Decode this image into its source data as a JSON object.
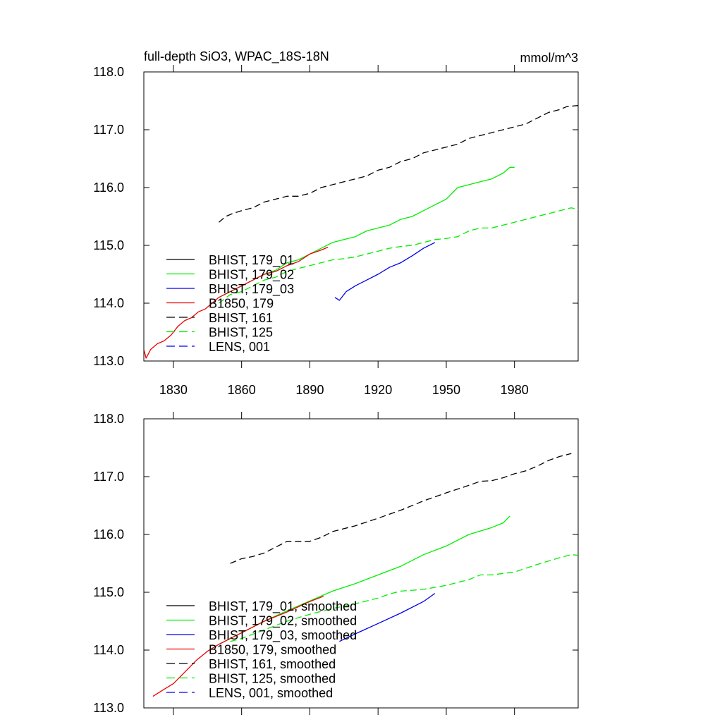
{
  "chart_data": [
    {
      "type": "line",
      "title": "full-depth SiO3, WPAC_18S-18N",
      "units": "mmol/m^3",
      "xlim": [
        1817,
        2008
      ],
      "ylim": [
        113.0,
        118.0
      ],
      "xticks": [
        1830,
        1860,
        1890,
        1920,
        1950,
        1980
      ],
      "xtick_labels": [
        "1830",
        "1860",
        "1890",
        "1920",
        "1950",
        "1980"
      ],
      "yticks": [
        113.0,
        114.0,
        115.0,
        116.0,
        117.0,
        118.0
      ],
      "ytick_labels": [
        "113.0",
        "114.0",
        "115.0",
        "116.0",
        "117.0",
        "118.0"
      ],
      "legend_position": "lower-left",
      "series": [
        {
          "name": "BHIST, 179_01",
          "color": "#000000",
          "dash": "solid",
          "points": []
        },
        {
          "name": "BHIST, 179_02",
          "color": "#00ee00",
          "dash": "solid",
          "points": [
            [
              1850,
              114.1
            ],
            [
              1855,
              114.2
            ],
            [
              1860,
              114.3
            ],
            [
              1865,
              114.4
            ],
            [
              1870,
              114.5
            ],
            [
              1875,
              114.57
            ],
            [
              1880,
              114.7
            ],
            [
              1885,
              114.75
            ],
            [
              1890,
              114.85
            ],
            [
              1895,
              114.95
            ],
            [
              1900,
              115.05
            ],
            [
              1905,
              115.1
            ],
            [
              1910,
              115.15
            ],
            [
              1915,
              115.25
            ],
            [
              1920,
              115.3
            ],
            [
              1925,
              115.35
            ],
            [
              1930,
              115.45
            ],
            [
              1935,
              115.5
            ],
            [
              1940,
              115.6
            ],
            [
              1945,
              115.7
            ],
            [
              1950,
              115.8
            ],
            [
              1955,
              116.0
            ],
            [
              1960,
              116.05
            ],
            [
              1965,
              116.1
            ],
            [
              1970,
              116.15
            ],
            [
              1975,
              116.25
            ],
            [
              1978,
              116.35
            ],
            [
              1980,
              116.35
            ]
          ]
        },
        {
          "name": "BHIST, 179_03",
          "color": "#0000ee",
          "dash": "solid",
          "points": [
            [
              1901,
              114.1
            ],
            [
              1903,
              114.05
            ],
            [
              1906,
              114.2
            ],
            [
              1910,
              114.3
            ],
            [
              1915,
              114.4
            ],
            [
              1920,
              114.5
            ],
            [
              1925,
              114.62
            ],
            [
              1930,
              114.7
            ],
            [
              1935,
              114.82
            ],
            [
              1940,
              114.95
            ],
            [
              1945,
              115.05
            ]
          ]
        },
        {
          "name": "B1850, 179",
          "color": "#ee0000",
          "dash": "solid",
          "points": [
            [
              1817,
              113.2
            ],
            [
              1818,
              113.05
            ],
            [
              1820,
              113.2
            ],
            [
              1823,
              113.3
            ],
            [
              1826,
              113.35
            ],
            [
              1829,
              113.45
            ],
            [
              1832,
              113.6
            ],
            [
              1835,
              113.7
            ],
            [
              1838,
              113.75
            ],
            [
              1841,
              113.85
            ],
            [
              1844,
              113.9
            ],
            [
              1847,
              114.0
            ],
            [
              1850,
              114.1
            ],
            [
              1855,
              114.2
            ],
            [
              1860,
              114.3
            ],
            [
              1865,
              114.4
            ],
            [
              1870,
              114.5
            ],
            [
              1875,
              114.55
            ],
            [
              1880,
              114.65
            ],
            [
              1885,
              114.72
            ],
            [
              1890,
              114.85
            ],
            [
              1895,
              114.92
            ],
            [
              1898,
              114.97
            ]
          ]
        },
        {
          "name": "BHIST, 161",
          "color": "#000000",
          "dash": "dashed",
          "points": [
            [
              1850,
              115.4
            ],
            [
              1853,
              115.5
            ],
            [
              1856,
              115.55
            ],
            [
              1860,
              115.6
            ],
            [
              1865,
              115.65
            ],
            [
              1870,
              115.75
            ],
            [
              1875,
              115.8
            ],
            [
              1880,
              115.85
            ],
            [
              1885,
              115.85
            ],
            [
              1890,
              115.9
            ],
            [
              1895,
              116.0
            ],
            [
              1900,
              116.05
            ],
            [
              1905,
              116.1
            ],
            [
              1910,
              116.15
            ],
            [
              1915,
              116.2
            ],
            [
              1920,
              116.3
            ],
            [
              1925,
              116.35
            ],
            [
              1930,
              116.45
            ],
            [
              1935,
              116.5
            ],
            [
              1940,
              116.6
            ],
            [
              1945,
              116.65
            ],
            [
              1950,
              116.7
            ],
            [
              1955,
              116.75
            ],
            [
              1960,
              116.85
            ],
            [
              1965,
              116.9
            ],
            [
              1970,
              116.95
            ],
            [
              1975,
              117.0
            ],
            [
              1980,
              117.05
            ],
            [
              1985,
              117.1
            ],
            [
              1990,
              117.2
            ],
            [
              1995,
              117.3
            ],
            [
              2000,
              117.35
            ],
            [
              2003,
              117.4
            ],
            [
              2008,
              117.42
            ]
          ]
        },
        {
          "name": "BHIST, 125",
          "color": "#00ee00",
          "dash": "dashed",
          "points": [
            [
              1850,
              114.0
            ],
            [
              1855,
              114.15
            ],
            [
              1860,
              114.2
            ],
            [
              1865,
              114.3
            ],
            [
              1870,
              114.4
            ],
            [
              1875,
              114.45
            ],
            [
              1880,
              114.55
            ],
            [
              1885,
              114.6
            ],
            [
              1890,
              114.65
            ],
            [
              1895,
              114.7
            ],
            [
              1900,
              114.75
            ],
            [
              1905,
              114.77
            ],
            [
              1910,
              114.8
            ],
            [
              1915,
              114.85
            ],
            [
              1920,
              114.9
            ],
            [
              1925,
              114.95
            ],
            [
              1930,
              114.98
            ],
            [
              1935,
              115.0
            ],
            [
              1940,
              115.05
            ],
            [
              1945,
              115.1
            ],
            [
              1950,
              115.12
            ],
            [
              1955,
              115.15
            ],
            [
              1960,
              115.25
            ],
            [
              1965,
              115.3
            ],
            [
              1970,
              115.3
            ],
            [
              1975,
              115.35
            ],
            [
              1980,
              115.4
            ],
            [
              1985,
              115.45
            ],
            [
              1990,
              115.5
            ],
            [
              1995,
              115.55
            ],
            [
              2000,
              115.6
            ],
            [
              2005,
              115.65
            ],
            [
              2008,
              115.62
            ]
          ]
        },
        {
          "name": "LENS, 001",
          "color": "#0000ee",
          "dash": "dashed",
          "points": []
        }
      ]
    },
    {
      "type": "line",
      "xlim": [
        1817,
        2008
      ],
      "ylim": [
        113.0,
        118.0
      ],
      "xticks": [
        1830,
        1860,
        1890,
        1920,
        1950,
        1980
      ],
      "yticks": [
        113.0,
        114.0,
        115.0,
        116.0,
        117.0,
        118.0
      ],
      "ytick_labels": [
        "113.0",
        "114.0",
        "115.0",
        "116.0",
        "117.0",
        "118.0"
      ],
      "legend_position": "lower-left",
      "series": [
        {
          "name": "BHIST, 179_01, smoothed",
          "color": "#000000",
          "dash": "solid",
          "points": []
        },
        {
          "name": "BHIST, 179_02, smoothed",
          "color": "#00ee00",
          "dash": "solid",
          "points": [
            [
              1850,
              114.1
            ],
            [
              1860,
              114.3
            ],
            [
              1870,
              114.5
            ],
            [
              1880,
              114.68
            ],
            [
              1890,
              114.85
            ],
            [
              1900,
              115.02
            ],
            [
              1910,
              115.15
            ],
            [
              1920,
              115.3
            ],
            [
              1930,
              115.45
            ],
            [
              1940,
              115.65
            ],
            [
              1950,
              115.8
            ],
            [
              1960,
              116.0
            ],
            [
              1970,
              116.12
            ],
            [
              1975,
              116.2
            ],
            [
              1978,
              116.32
            ]
          ]
        },
        {
          "name": "BHIST, 179_03, smoothed",
          "color": "#0000ee",
          "dash": "solid",
          "points": [
            [
              1903,
              114.15
            ],
            [
              1910,
              114.28
            ],
            [
              1920,
              114.46
            ],
            [
              1930,
              114.64
            ],
            [
              1940,
              114.84
            ],
            [
              1945,
              114.98
            ]
          ]
        },
        {
          "name": "B1850, 179, smoothed",
          "color": "#ee0000",
          "dash": "solid",
          "points": [
            [
              1821,
              113.2
            ],
            [
              1825,
              113.3
            ],
            [
              1830,
              113.42
            ],
            [
              1835,
              113.62
            ],
            [
              1840,
              113.82
            ],
            [
              1845,
              113.98
            ],
            [
              1850,
              114.1
            ],
            [
              1860,
              114.3
            ],
            [
              1870,
              114.5
            ],
            [
              1880,
              114.66
            ],
            [
              1885,
              114.75
            ],
            [
              1890,
              114.84
            ],
            [
              1896,
              114.93
            ]
          ]
        },
        {
          "name": "BHIST, 161, smoothed",
          "color": "#000000",
          "dash": "dashed",
          "points": [
            [
              1855,
              115.5
            ],
            [
              1860,
              115.58
            ],
            [
              1865,
              115.62
            ],
            [
              1870,
              115.68
            ],
            [
              1875,
              115.78
            ],
            [
              1880,
              115.88
            ],
            [
              1885,
              115.88
            ],
            [
              1890,
              115.88
            ],
            [
              1895,
              115.95
            ],
            [
              1900,
              116.05
            ],
            [
              1910,
              116.15
            ],
            [
              1920,
              116.28
            ],
            [
              1930,
              116.42
            ],
            [
              1940,
              116.58
            ],
            [
              1950,
              116.72
            ],
            [
              1960,
              116.85
            ],
            [
              1965,
              116.92
            ],
            [
              1970,
              116.93
            ],
            [
              1975,
              116.98
            ],
            [
              1980,
              117.05
            ],
            [
              1985,
              117.1
            ],
            [
              1990,
              117.18
            ],
            [
              1995,
              117.28
            ],
            [
              2000,
              117.35
            ],
            [
              2005,
              117.4
            ]
          ]
        },
        {
          "name": "BHIST, 125, smoothed",
          "color": "#00ee00",
          "dash": "dashed",
          "points": [
            [
              1855,
              114.15
            ],
            [
              1860,
              114.2
            ],
            [
              1870,
              114.35
            ],
            [
              1880,
              114.5
            ],
            [
              1890,
              114.62
            ],
            [
              1900,
              114.72
            ],
            [
              1910,
              114.8
            ],
            [
              1920,
              114.9
            ],
            [
              1925,
              114.97
            ],
            [
              1930,
              115.02
            ],
            [
              1940,
              115.05
            ],
            [
              1950,
              115.12
            ],
            [
              1960,
              115.22
            ],
            [
              1965,
              115.3
            ],
            [
              1970,
              115.3
            ],
            [
              1980,
              115.35
            ],
            [
              1990,
              115.48
            ],
            [
              2000,
              115.6
            ],
            [
              2005,
              115.65
            ],
            [
              2008,
              115.64
            ]
          ]
        },
        {
          "name": "LENS, 001, smoothed",
          "color": "#0000ee",
          "dash": "dashed",
          "points": []
        }
      ]
    }
  ]
}
